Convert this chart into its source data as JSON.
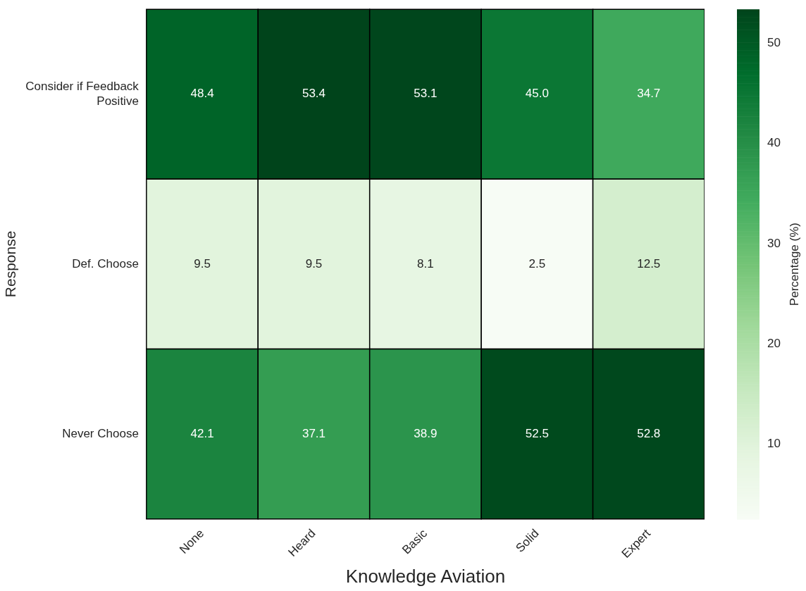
{
  "chart_data": {
    "type": "heatmap",
    "xlabel": "Knowledge Aviation",
    "ylabel": "Response",
    "clabel": "Percentage (%)",
    "categories": [
      "None",
      "Heard",
      "Basic",
      "Solid",
      "Expert"
    ],
    "y_categories": [
      "Consider if Feedback Positive",
      "Def. Choose",
      "Never Choose"
    ],
    "cells": [
      [
        48.4,
        53.4,
        53.1,
        45.0,
        34.7
      ],
      [
        9.5,
        9.5,
        8.1,
        2.5,
        12.5
      ],
      [
        42.1,
        37.1,
        38.9,
        52.5,
        52.8
      ]
    ],
    "cell_labels": [
      [
        "48.4",
        "53.4",
        "53.1",
        "45.0",
        "34.7"
      ],
      [
        "9.5",
        "9.5",
        "8.1",
        "2.5",
        "12.5"
      ],
      [
        "42.1",
        "37.1",
        "38.9",
        "52.5",
        "52.8"
      ]
    ],
    "clim": [
      2.5,
      53.4
    ],
    "cticks": [
      10,
      20,
      30,
      40,
      50
    ]
  }
}
